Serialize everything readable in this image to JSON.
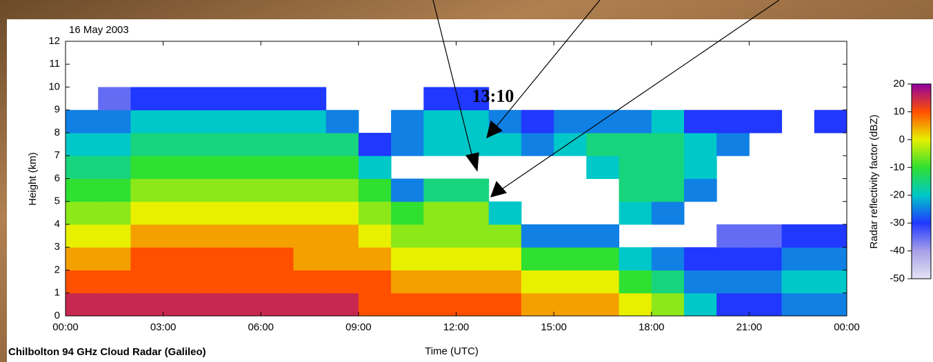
{
  "chart_data": {
    "type": "heatmap",
    "title": "16 May 2003",
    "annotation": "13:10",
    "xlabel": "Time (UTC)",
    "ylabel": "Height (km)",
    "colorbar_label": "Radar reflectivity factor (dBZ)",
    "footer": "Chilbolton 94 GHz Cloud Radar (Galileo)",
    "xlim": [
      0,
      24
    ],
    "ylim": [
      0,
      12
    ],
    "zlim": [
      -50,
      20
    ],
    "xticks": [
      {
        "value": 0,
        "label": "00:00"
      },
      {
        "value": 3,
        "label": "03:00"
      },
      {
        "value": 6,
        "label": "06:00"
      },
      {
        "value": 9,
        "label": "09:00"
      },
      {
        "value": 12,
        "label": "12:00"
      },
      {
        "value": 15,
        "label": "15:00"
      },
      {
        "value": 18,
        "label": "18:00"
      },
      {
        "value": 21,
        "label": "21:00"
      },
      {
        "value": 24,
        "label": "00:00"
      }
    ],
    "yticks": [
      0,
      1,
      2,
      3,
      4,
      5,
      6,
      7,
      8,
      9,
      10,
      11,
      12
    ],
    "zticks": [
      20,
      10,
      0,
      -10,
      -20,
      -30,
      -40,
      -50
    ],
    "colorscale": [
      "#e4e2f4",
      "#a8a0e8",
      "#2038ff",
      "#00c8c8",
      "#30e030",
      "#e8f000",
      "#ff5000",
      "#9000a0"
    ],
    "x_bins": [
      0,
      1,
      2,
      3,
      4,
      5,
      6,
      7,
      8,
      9,
      10,
      11,
      12,
      13,
      14,
      15,
      16,
      17,
      18,
      19,
      20,
      21,
      22,
      23,
      24
    ],
    "y_bins": [
      0,
      1,
      2,
      3,
      4,
      5,
      6,
      7,
      8,
      9,
      10
    ],
    "z": [
      [
        15,
        15,
        15,
        15,
        15,
        15,
        15,
        15,
        15,
        10,
        10,
        10,
        10,
        10,
        5,
        5,
        5,
        0,
        -5,
        -20,
        -30,
        -30,
        -25,
        -25
      ],
      [
        10,
        10,
        10,
        10,
        10,
        10,
        10,
        10,
        10,
        10,
        5,
        5,
        5,
        5,
        0,
        0,
        0,
        -10,
        -15,
        -25,
        -25,
        -25,
        -20,
        -20
      ],
      [
        5,
        5,
        10,
        10,
        10,
        10,
        10,
        5,
        5,
        5,
        0,
        0,
        0,
        0,
        -10,
        -10,
        -10,
        -20,
        -25,
        -30,
        -30,
        -30,
        -25,
        -25
      ],
      [
        0,
        0,
        5,
        5,
        5,
        5,
        5,
        5,
        5,
        0,
        -5,
        -5,
        -5,
        -5,
        -25,
        -25,
        -25,
        null,
        null,
        null,
        -35,
        -35,
        -30,
        -30
      ],
      [
        -5,
        -5,
        0,
        0,
        0,
        0,
        0,
        0,
        0,
        -5,
        -10,
        -5,
        -5,
        -20,
        null,
        null,
        null,
        -20,
        -25,
        null,
        null,
        null,
        null,
        null
      ],
      [
        -10,
        -10,
        -5,
        -5,
        -5,
        -5,
        -5,
        -5,
        -5,
        -10,
        -25,
        -15,
        -15,
        null,
        null,
        null,
        null,
        -15,
        -15,
        -25,
        null,
        null,
        null,
        null
      ],
      [
        -15,
        -15,
        -10,
        -10,
        -10,
        -10,
        -10,
        -10,
        -10,
        -20,
        null,
        null,
        null,
        null,
        null,
        null,
        -20,
        -15,
        -15,
        -20,
        null,
        null,
        null,
        null
      ],
      [
        -20,
        -20,
        -15,
        -15,
        -15,
        -15,
        -15,
        -15,
        -15,
        -30,
        -25,
        -20,
        -20,
        -20,
        -25,
        -20,
        -15,
        -15,
        -15,
        -20,
        -25,
        null,
        null,
        null
      ],
      [
        -25,
        -25,
        -20,
        -20,
        -20,
        -20,
        -20,
        -20,
        -25,
        null,
        -25,
        -20,
        -20,
        -25,
        -30,
        -25,
        -25,
        -25,
        -20,
        -30,
        -30,
        -30,
        null,
        -30
      ],
      [
        null,
        -35,
        -30,
        -30,
        -30,
        -30,
        -30,
        -30,
        null,
        null,
        null,
        -30,
        -30,
        null,
        null,
        null,
        null,
        null,
        null,
        null,
        null,
        null,
        null,
        null
      ]
    ]
  }
}
